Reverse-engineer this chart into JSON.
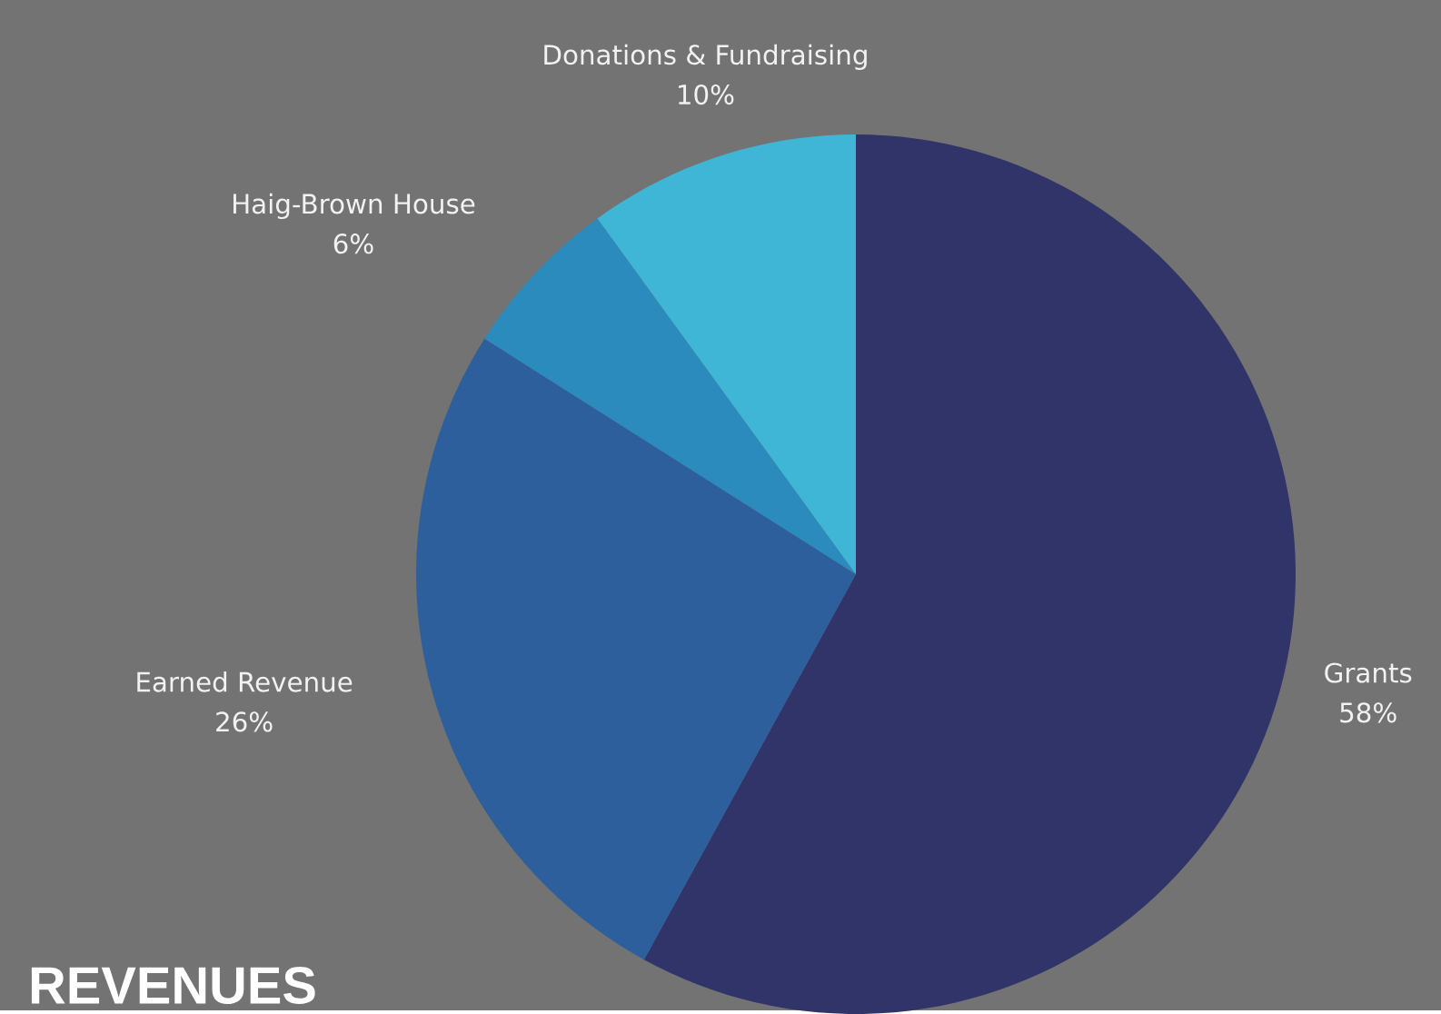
{
  "chart_data": {
    "type": "pie",
    "title": "REVENUES",
    "categories": [
      "Grants",
      "Earned Revenue",
      "Haig-Brown House",
      "Donations & Fundraising"
    ],
    "values": [
      58,
      26,
      6,
      10
    ],
    "value_labels": [
      "58%",
      "26%",
      "6%",
      "10%"
    ],
    "colors": [
      "#303468",
      "#2d5f9c",
      "#2b8bbd",
      "#40b6d6"
    ]
  }
}
